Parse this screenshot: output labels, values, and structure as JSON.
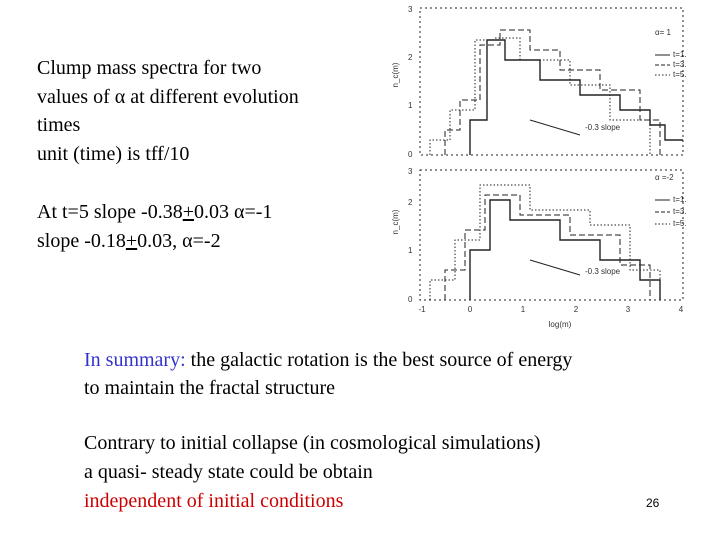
{
  "left_text": {
    "lines": [
      "Clump mass spectra for two",
      "values of α at different evolution",
      "times",
      "unit (time) is tff/10"
    ],
    "slope_line_1": [
      "At t=5  slope -0.38",
      "+",
      "0.03 α=-1"
    ],
    "slope_line_2": [
      "slope -0.18",
      "+",
      "0.03, α=-2"
    ]
  },
  "figure": {
    "top_panel": {
      "alpha": "α= 1",
      "legend": [
        "t=1.",
        "t=3.",
        "t=5."
      ],
      "slope": "-0.3 slope",
      "y_label": "n_c(m)",
      "y_ticks": [
        "3",
        "2",
        "1",
        "0"
      ]
    },
    "bottom_panel": {
      "alpha": "α =-2",
      "legend": [
        "t=1.",
        "t=3.",
        "t=5."
      ],
      "slope": "-0.3 slope",
      "y_label": "n_c(m)",
      "y_ticks": [
        "3",
        "2",
        "1",
        "0"
      ]
    },
    "x_ticks": [
      "-1",
      "0",
      "1",
      "2",
      "3",
      "4"
    ],
    "x_label": "log(m)"
  },
  "summary": {
    "lead": "In summary:",
    "rest": " the galactic rotation is the best source of energy",
    "line2": "to maintain the fractal structure"
  },
  "conclusion": {
    "lines": [
      "Contrary to initial collapse (in cosmological simulations)",
      "a quasi- steady state could be obtain"
    ],
    "highlight": "independent of initial conditions"
  },
  "page_number": "26"
}
